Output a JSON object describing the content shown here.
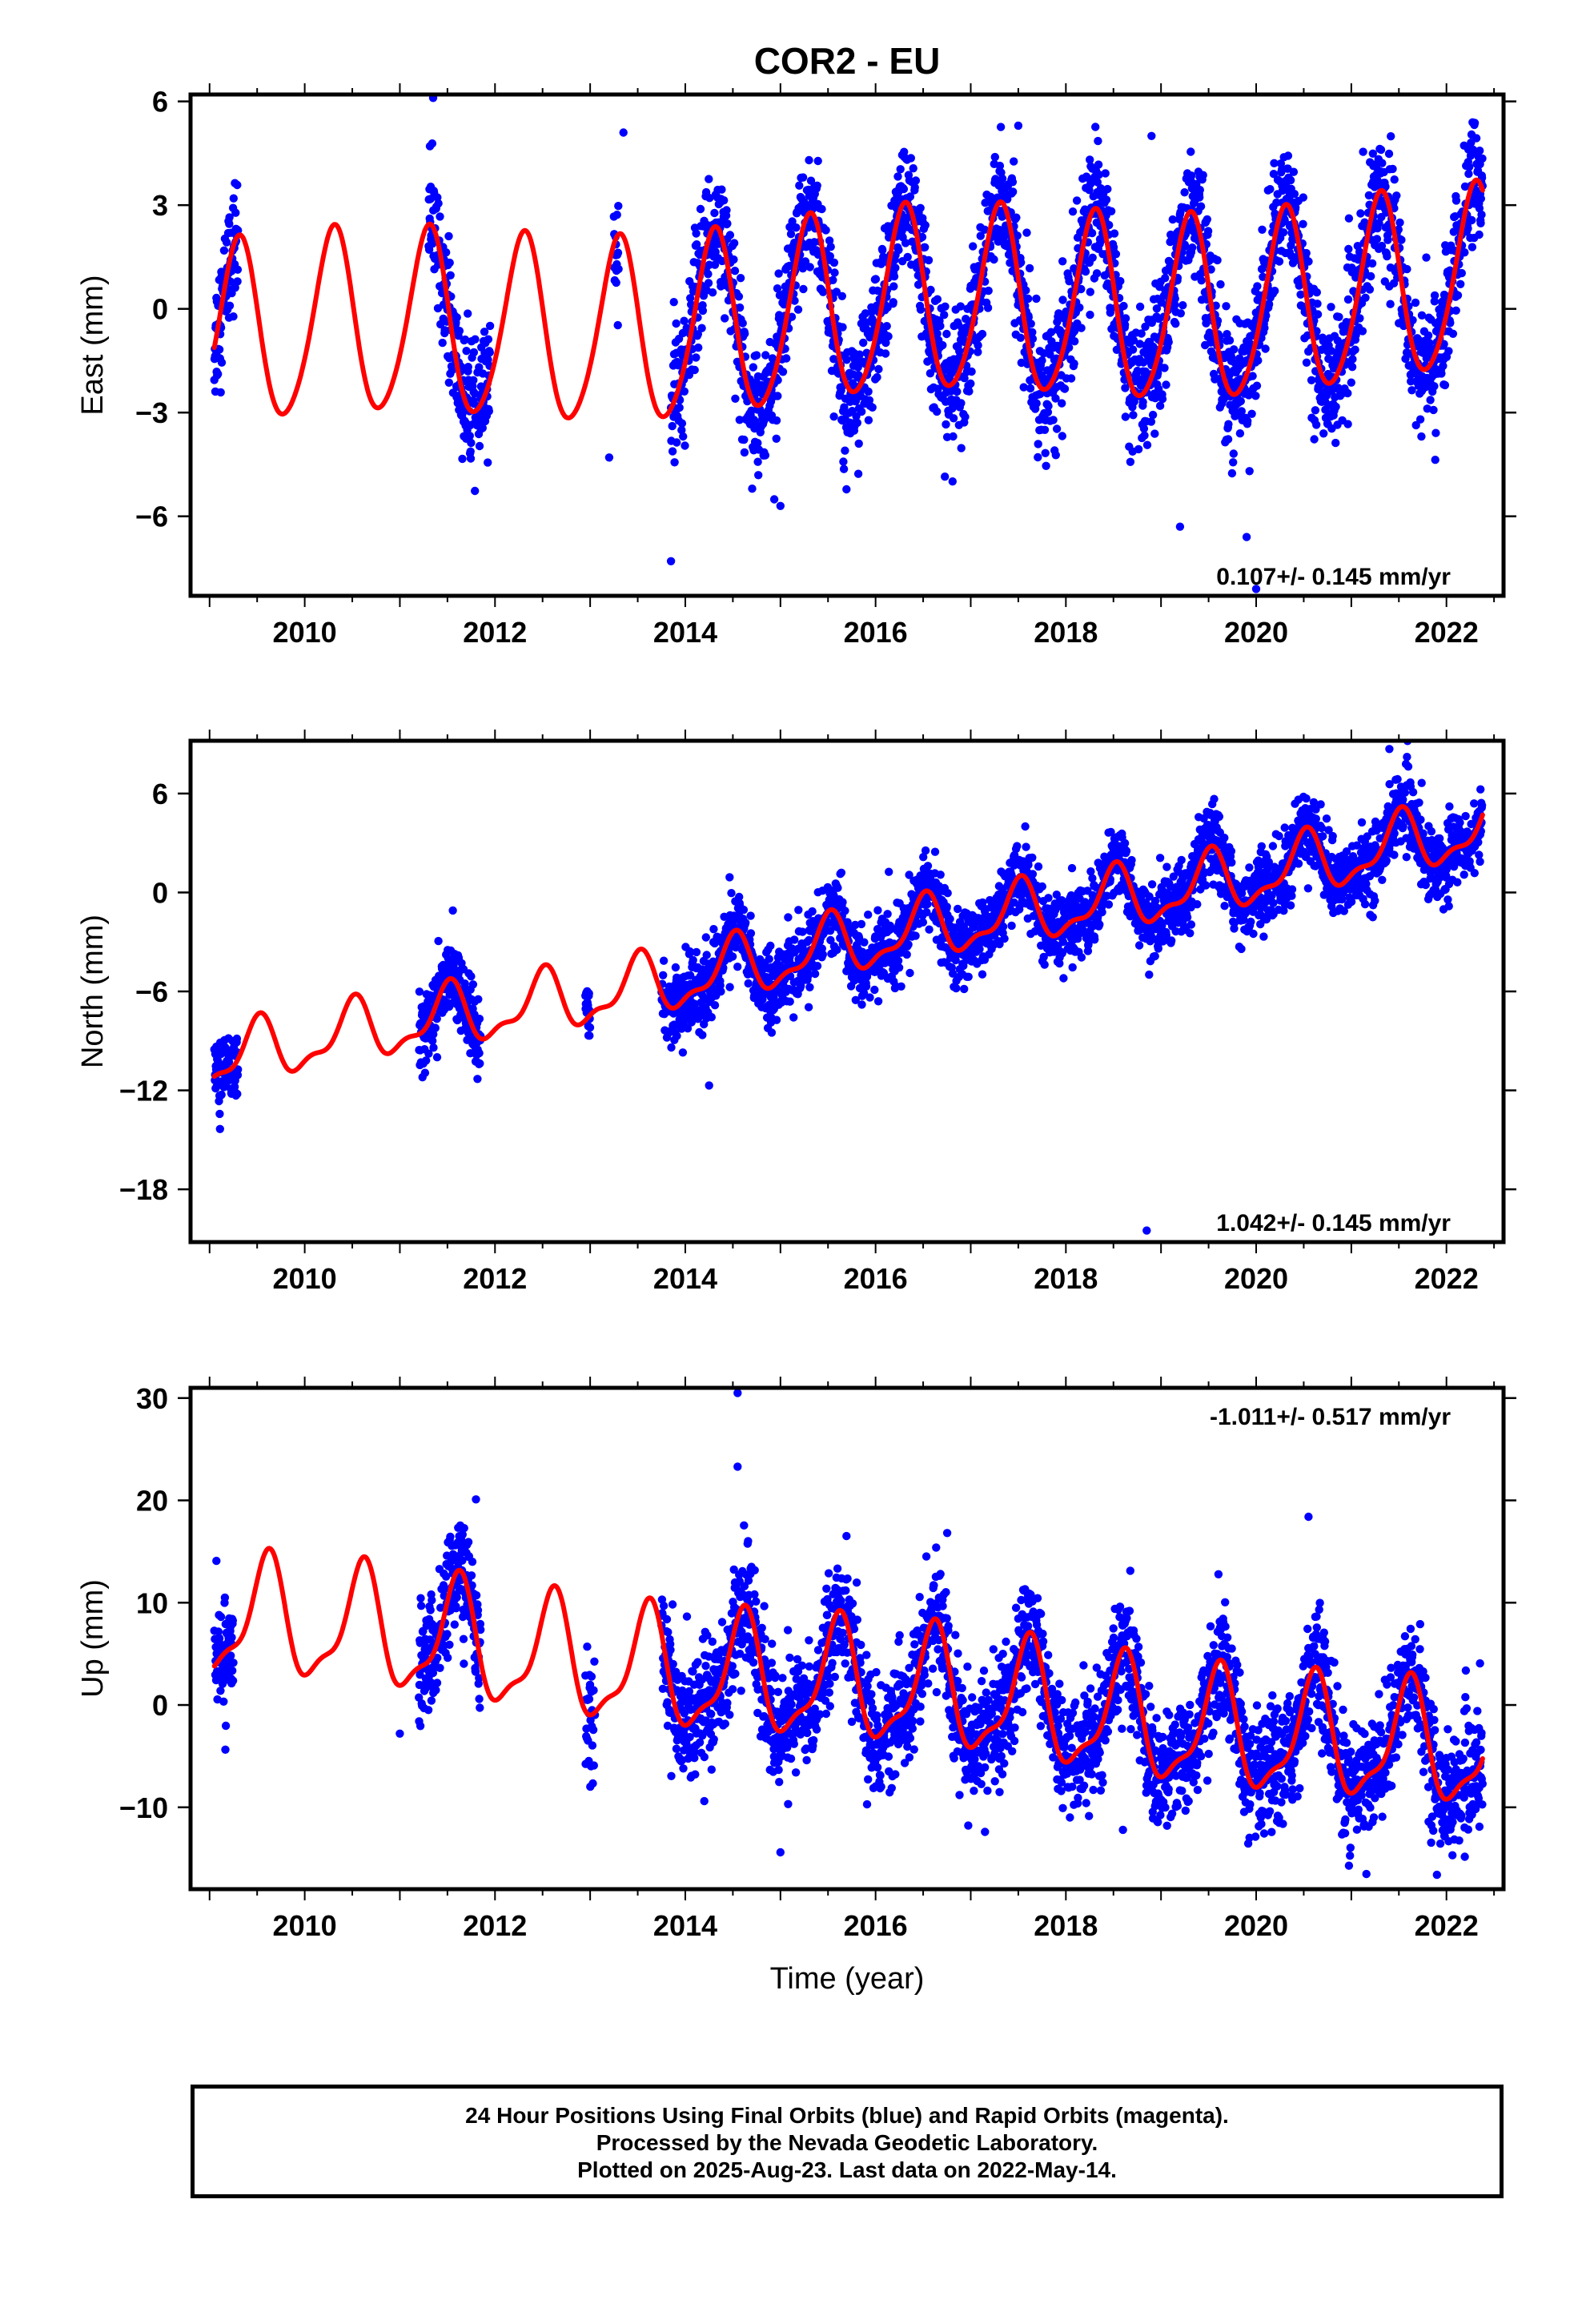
{
  "figure_title": "COR2 - EU",
  "chart_data": [
    {
      "type": "scatter",
      "title": "",
      "ylabel": "East (mm)",
      "xlabel": "",
      "xlim": [
        2008.8,
        2022.6
      ],
      "ylim": [
        -8.3,
        6.2
      ],
      "xticks": [
        2010,
        2012,
        2014,
        2016,
        2018,
        2020,
        2022
      ],
      "yticks": [
        -6,
        -3,
        0,
        3,
        6
      ],
      "ytick_labels": [
        "−6",
        "−3",
        "0",
        "3",
        "6"
      ],
      "rate_label": "0.107+/- 0.145 mm/yr",
      "rate_position": "bottom-right",
      "series": [
        {
          "kind": "points",
          "color": "#0000ff",
          "segments": [
            [
              2009.05,
              2009.3
            ],
            [
              2011.3,
              2011.95
            ],
            [
              2013.25,
              2013.3
            ],
            [
              2013.85,
              2022.38
            ]
          ],
          "model": {
            "offset": -0.9,
            "trend": 0.107,
            "amp_annual": 2.65,
            "phase_peak": 2009.3,
            "amp_semi": 0.3,
            "amp_drift": 0.3
          },
          "scatter_sd": 0.9,
          "outliers": [
            [
              2011.35,
              6.1
            ],
            [
              2013.85,
              -7.3
            ],
            [
              2015.0,
              -5.7
            ],
            [
              2017.5,
              5.3
            ],
            [
              2018.9,
              5.0
            ],
            [
              2019.2,
              -6.3
            ],
            [
              2019.9,
              -6.6
            ],
            [
              2020.0,
              -8.1
            ],
            [
              2013.35,
              5.1
            ],
            [
              2013.2,
              -4.3
            ]
          ]
        },
        {
          "kind": "line",
          "color": "#ff0000",
          "name": "",
          "x_range": [
            2009.05,
            2022.38
          ],
          "model": {
            "offset": -0.9,
            "trend": 0.107,
            "amp_annual": 2.65,
            "phase_peak": 2009.3,
            "amp_semi": 0.3,
            "amp_drift": 0.3
          }
        }
      ]
    },
    {
      "type": "scatter",
      "title": "",
      "ylabel": "North (mm)",
      "xlabel": "",
      "xlim": [
        2008.8,
        2022.6
      ],
      "ylim": [
        -21.2,
        9.2
      ],
      "xticks": [
        2010,
        2012,
        2014,
        2016,
        2018,
        2020,
        2022
      ],
      "yticks": [
        -18,
        -12,
        -6,
        0,
        6
      ],
      "ytick_labels": [
        "−18",
        "−12",
        "−6",
        "0",
        "6"
      ],
      "rate_label": "1.042+/- 0.145 mm/yr",
      "rate_position": "bottom-right",
      "series": [
        {
          "kind": "points",
          "color": "#0000ff",
          "segments": [
            [
              2009.05,
              2009.3
            ],
            [
              2011.2,
              2011.85
            ],
            [
              2012.95,
              2013.0
            ],
            [
              2013.75,
              2022.38
            ]
          ],
          "model": {
            "offset": -10.3,
            "trend": 1.042,
            "amp_annual": 1.7,
            "phase_peak": 2009.5,
            "amp_semi": 0.7,
            "amp_drift": 0.2
          },
          "scatter_sd": 1.1,
          "outliers": [
            [
              2014.25,
              -11.7
            ],
            [
              2018.85,
              -20.5
            ],
            [
              2021.4,
              8.7
            ],
            [
              2009.15,
              -11.8
            ]
          ]
        },
        {
          "kind": "line",
          "color": "#ff0000",
          "name": "",
          "x_range": [
            2009.05,
            2022.38
          ],
          "model": {
            "offset": -10.3,
            "trend": 1.042,
            "amp_annual": 1.7,
            "phase_peak": 2009.5,
            "amp_semi": 0.7,
            "amp_drift": 0.2
          }
        }
      ]
    },
    {
      "type": "scatter",
      "title": "",
      "ylabel": "Up (mm)",
      "xlabel": "Time (year)",
      "xlim": [
        2008.8,
        2022.6
      ],
      "ylim": [
        -18.0,
        31.0
      ],
      "xticks": [
        2010,
        2012,
        2014,
        2016,
        2018,
        2020,
        2022
      ],
      "yticks": [
        -10,
        0,
        10,
        20,
        30
      ],
      "ytick_labels": [
        "−10",
        "0",
        "10",
        "20",
        "30"
      ],
      "rate_label": "-1.011+/- 0.517 mm/yr",
      "rate_position": "top-right",
      "series": [
        {
          "kind": "points",
          "color": "#0000ff",
          "segments": [
            [
              2009.05,
              2009.25
            ],
            [
              2011.2,
              2011.85
            ],
            [
              2012.95,
              2013.05
            ],
            [
              2013.75,
              2022.38
            ]
          ],
          "model": {
            "offset": 8.5,
            "trend": -1.011,
            "amp_annual": 5.5,
            "phase_peak": 2009.6,
            "amp_semi": 1.8,
            "amp_drift": 0.5
          },
          "scatter_sd": 2.8,
          "outliers": [
            [
              2014.55,
              30.5
            ],
            [
              2014.55,
              23.3
            ],
            [
              2020.55,
              18.4
            ],
            [
              2011.0,
              -2.8
            ],
            [
              2015.0,
              -14.4
            ],
            [
              2017.15,
              -12.4
            ],
            [
              2018.6,
              -12.2
            ],
            [
              2014.2,
              -9.4
            ],
            [
              2021.9,
              -16.6
            ],
            [
              2011.8,
              20.1
            ]
          ]
        },
        {
          "kind": "line",
          "color": "#ff0000",
          "name": "",
          "x_range": [
            2009.05,
            2022.38
          ],
          "model": {
            "offset": 8.5,
            "trend": -1.011,
            "amp_annual": 5.5,
            "phase_peak": 2009.6,
            "amp_semi": 1.8,
            "amp_drift": 0.5
          }
        }
      ]
    }
  ],
  "footer": {
    "line1": "24 Hour Positions Using Final Orbits (blue) and Rapid Orbits (magenta).",
    "line2": "Processed by the Nevada Geodetic Laboratory.",
    "line3": "Plotted on 2025-Aug-23. Last data on 2022-May-14."
  }
}
